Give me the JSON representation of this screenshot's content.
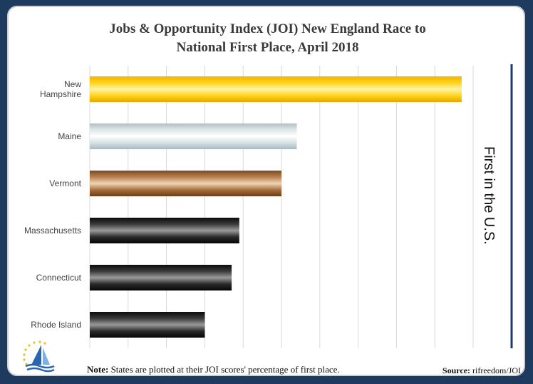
{
  "chart_data": {
    "type": "bar",
    "orientation": "horizontal",
    "title_line1": "Jobs & Opportunity Index (JOI) New England Race to",
    "title_line2": "National First Place, April 2018",
    "categories": [
      "New Hampshire",
      "Maine",
      "Vermont",
      "Massachusetts",
      "Connecticut",
      "Rhode Island"
    ],
    "category_lines": [
      [
        "New",
        "Hampshire"
      ],
      [
        "Maine"
      ],
      [
        "Vermont"
      ],
      [
        "Massachusetts"
      ],
      [
        "Connecticut"
      ],
      [
        "Rhode Island"
      ]
    ],
    "values": [
      97,
      54,
      50,
      39,
      37,
      30
    ],
    "xlim": [
      0,
      100
    ],
    "grid": true,
    "side_label": "First in the U.S.",
    "bar_styles": [
      "gold",
      "silver",
      "bronze",
      "black",
      "black",
      "black"
    ],
    "colors": {
      "gold": [
        "#f2b500",
        "#ffd21a",
        "#fff4a8",
        "#ffd21a",
        "#e6a800"
      ],
      "silver": [
        "#aebfc4",
        "#dfe8ea",
        "#ffffff",
        "#d6e1e4",
        "#a8babf"
      ],
      "bronze": [
        "#7a4a1e",
        "#b88050",
        "#f0d4b4",
        "#a8703e",
        "#6a3e18"
      ],
      "black": [
        "#0a0a0a",
        "#3a3a3a",
        "#9a9a9a",
        "#2a2a2a",
        "#050505"
      ],
      "marker_line": "#1f3a6f",
      "grid": "#d9d9d9",
      "background": "#1f3a5f"
    }
  },
  "note_label": "Note:",
  "note_text": " States are plotted at their JOI scores' percentage of first place.",
  "source_label": "Source:",
  "source_text": " rifreedom/JOI",
  "logo_icon": "sailboat-stars-logo-icon"
}
